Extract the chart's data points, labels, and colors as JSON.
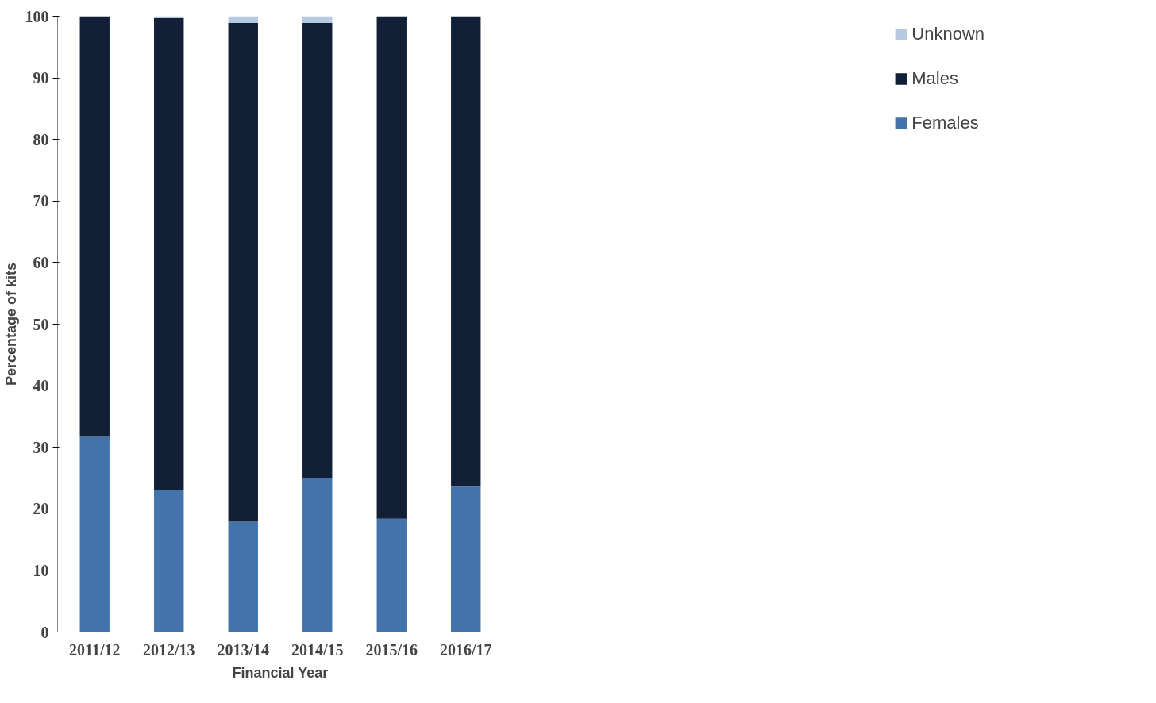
{
  "chart_data": {
    "type": "bar",
    "stacked": true,
    "xlabel": "Financial Year",
    "ylabel": "Percentage of kits",
    "categories": [
      "2011/12",
      "2012/13",
      "2013/14",
      "2014/15",
      "2015/16",
      "2016/17"
    ],
    "series": [
      {
        "name": "Females",
        "color": "#4373ab",
        "values": [
          31.7,
          23.0,
          17.9,
          25.0,
          18.4,
          23.6
        ]
      },
      {
        "name": "Males",
        "color": "#112036",
        "values": [
          68.3,
          76.7,
          81.0,
          73.9,
          81.6,
          76.4
        ]
      },
      {
        "name": "Unknown",
        "color": "#b5c9e1",
        "values": [
          0,
          0.3,
          1.1,
          1.1,
          0,
          0
        ]
      }
    ],
    "ylim": [
      0,
      100
    ],
    "yticks": [
      0,
      10,
      20,
      30,
      40,
      50,
      60,
      70,
      80,
      90,
      100
    ],
    "grid": false,
    "legend": "right"
  }
}
